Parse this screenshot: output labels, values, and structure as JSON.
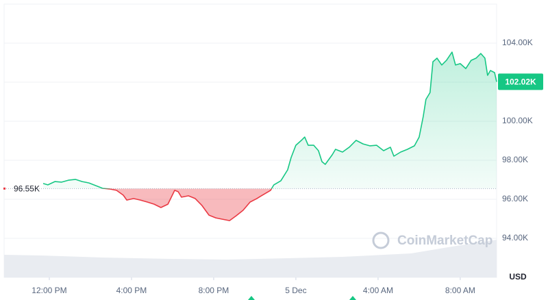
{
  "chart_data": {
    "type": "baseline-line",
    "x": [
      -0.3,
      -0.07,
      0.27,
      0.6,
      0.93,
      1.27,
      1.6,
      1.93,
      2.27,
      2.6,
      2.93,
      3.27,
      3.6,
      3.77,
      4.1,
      4.43,
      4.77,
      5.1,
      5.43,
      5.77,
      6.1,
      6.27,
      6.43,
      6.77,
      7.1,
      7.43,
      7.77,
      8.1,
      8.43,
      8.77,
      9.1,
      9.43,
      9.77,
      10.1,
      10.43,
      10.77,
      10.93,
      11.27,
      11.6,
      11.77,
      12,
      12.27,
      12.43,
      12.6,
      12.87,
      13.1,
      13.27,
      13.43,
      13.77,
      13.93,
      14.27,
      14.6,
      14.93,
      15.27,
      15.6,
      15.93,
      16.27,
      16.6,
      16.77,
      17.1,
      17.43,
      17.77,
      18,
      18.2,
      18.33,
      18.53,
      18.67,
      18.87,
      19.1,
      19.33,
      19.6,
      19.77,
      20,
      20.27,
      20.53,
      20.77,
      21,
      21.2,
      21.33,
      21.47,
      21.67,
      21.77
    ],
    "series": [
      {
        "color": "#16c784",
        "negative_color": "#ea3943",
        "values": [
          96810,
          96740,
          96910,
          96880,
          96980,
          97020,
          96910,
          96840,
          96700,
          96560,
          96530,
          96460,
          96210,
          95960,
          96040,
          95960,
          95860,
          95750,
          95580,
          95750,
          96460,
          96390,
          96110,
          96180,
          96040,
          95680,
          95190,
          95050,
          94980,
          94910,
          95160,
          95440,
          95860,
          96040,
          96250,
          96460,
          96740,
          96950,
          97510,
          98140,
          98770,
          99020,
          99190,
          98770,
          98770,
          98490,
          97930,
          97790,
          98280,
          98560,
          98420,
          98670,
          99020,
          98840,
          98740,
          98770,
          98490,
          98670,
          98210,
          98420,
          98560,
          98740,
          99190,
          100250,
          101120,
          101470,
          103050,
          103230,
          102880,
          103120,
          103540,
          102880,
          102950,
          102700,
          103120,
          103230,
          103470,
          103230,
          102350,
          102600,
          102490,
          102020
        ]
      }
    ],
    "baseline": {
      "value": 96550,
      "label": "96.55K"
    },
    "current": {
      "value": 102020,
      "label": "102.02K"
    },
    "xlim": [
      -2.2,
      21.77
    ],
    "xticks": [
      {
        "value": 0,
        "label": "12:00 PM"
      },
      {
        "value": 4,
        "label": "4:00 PM"
      },
      {
        "value": 8,
        "label": "8:00 PM"
      },
      {
        "value": 12,
        "label": "5 Dec"
      },
      {
        "value": 16,
        "label": "4:00 AM"
      },
      {
        "value": 20,
        "label": "8:00 AM"
      }
    ],
    "ylim": [
      92000,
      106000
    ],
    "yticks": [
      {
        "value": 94000,
        "label": "94.00K"
      },
      {
        "value": 96000,
        "label": "96.00K"
      },
      {
        "value": 98000,
        "label": "98.00K"
      },
      {
        "value": 100000,
        "label": "100.00K"
      },
      {
        "value": 102000,
        "label": "102.00K"
      },
      {
        "value": 104000,
        "label": "104.00K"
      }
    ],
    "y_unit": "USD",
    "watermark": "CoinMarketCap",
    "grid": true
  }
}
